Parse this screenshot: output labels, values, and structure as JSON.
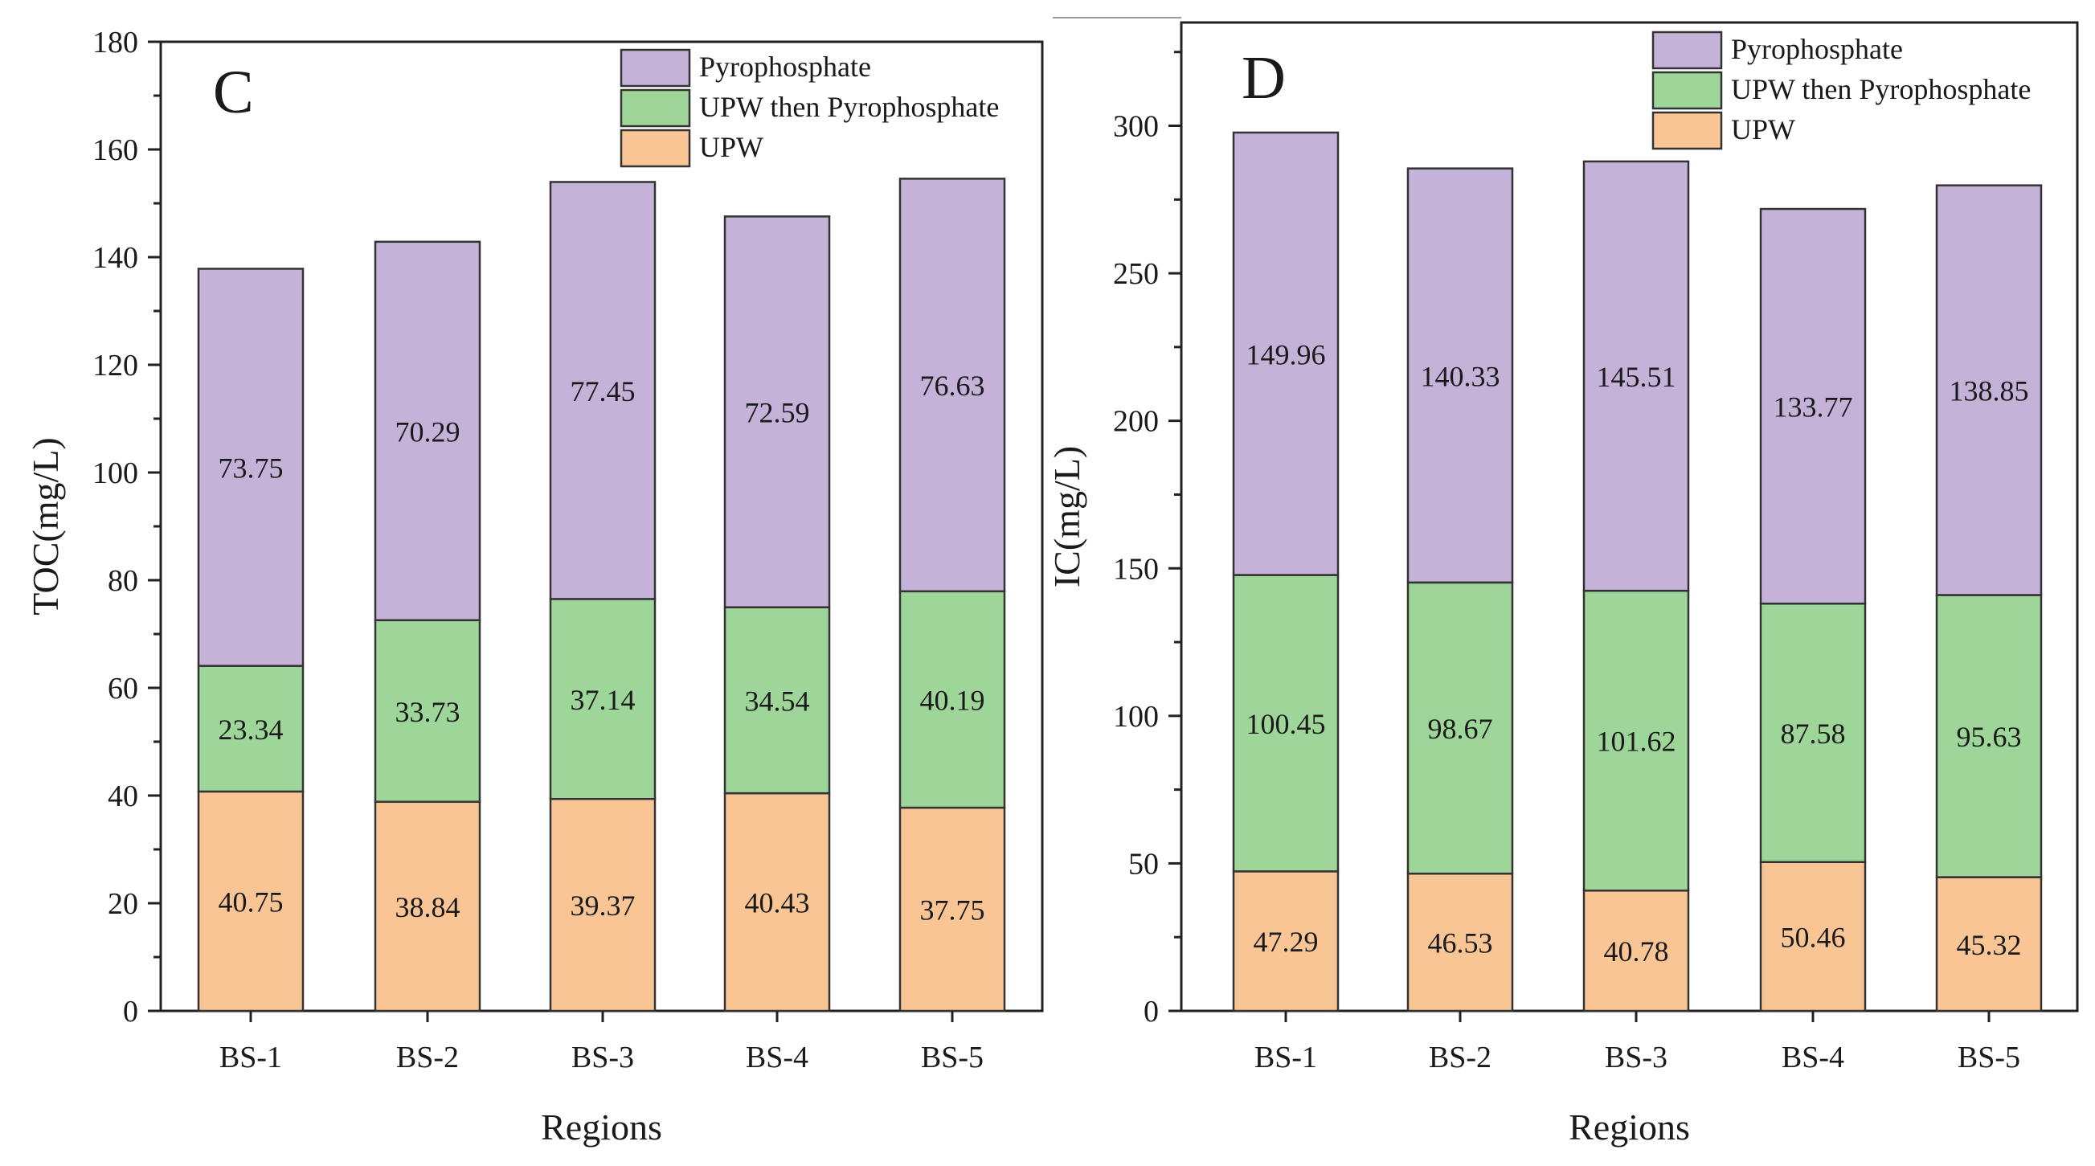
{
  "colors": {
    "upw": "#f9c595",
    "upw_then_pyro": "#9ed69a",
    "pyro": "#c4b2d9"
  },
  "chart_data": [
    {
      "type": "bar",
      "stacked": true,
      "panel_label": "C",
      "categories": [
        "BS-1",
        "BS-2",
        "BS-3",
        "BS-4",
        "BS-5"
      ],
      "series": [
        {
          "name": "UPW",
          "values": [
            40.75,
            38.84,
            39.37,
            40.43,
            37.75
          ],
          "labels": [
            "40.75",
            "38.84",
            "39.37",
            "40.43",
            "37.75"
          ]
        },
        {
          "name": "UPW then Pyrophosphate",
          "values": [
            23.34,
            33.73,
            37.14,
            34.54,
            40.19
          ],
          "labels": [
            "23.34",
            "33.73",
            "37.14",
            "34.54",
            "40.19"
          ]
        },
        {
          "name": "Pyrophosphate",
          "values": [
            73.75,
            70.29,
            77.45,
            72.59,
            76.63
          ],
          "labels": [
            "73.75",
            "70.29",
            "77.45",
            "72.59",
            "76.63"
          ]
        }
      ],
      "legend_order": [
        "Pyrophosphate",
        "UPW then Pyrophosphate",
        "UPW"
      ],
      "legend_position": "top-right",
      "xlabel": "Regions",
      "ylabel": "TOC(mg/L)",
      "ylim": [
        0,
        180
      ],
      "yticks": [
        0,
        20,
        40,
        60,
        80,
        100,
        120,
        140,
        160,
        180
      ],
      "yticklabels": [
        "0",
        "20",
        "40",
        "60",
        "80",
        "100",
        "120",
        "140",
        "160",
        "180"
      ],
      "minor_ticks": true,
      "grid": false
    },
    {
      "type": "bar",
      "stacked": true,
      "panel_label": "D",
      "categories": [
        "BS-1",
        "BS-2",
        "BS-3",
        "BS-4",
        "BS-5"
      ],
      "series": [
        {
          "name": "UPW",
          "values": [
            47.29,
            46.53,
            40.78,
            50.46,
            45.32
          ],
          "labels": [
            "47.29",
            "46.53",
            "40.78",
            "50.46",
            "45.32"
          ]
        },
        {
          "name": "UPW then Pyrophosphate",
          "values": [
            100.45,
            98.67,
            101.62,
            87.58,
            95.63
          ],
          "labels": [
            "100.45",
            "98.67",
            "101.62",
            "87.58",
            "95.63"
          ]
        },
        {
          "name": "Pyrophosphate",
          "values": [
            149.96,
            140.33,
            145.51,
            133.77,
            138.85
          ],
          "labels": [
            "149.96",
            "140.33",
            "145.51",
            "133.77",
            "138.85"
          ]
        }
      ],
      "legend_order": [
        "Pyrophosphate",
        "UPW then Pyrophosphate",
        "UPW"
      ],
      "legend_position": "top-right",
      "xlabel": "Regions",
      "ylabel": "IC(mg/L)",
      "ylim": [
        0,
        335
      ],
      "yticks": [
        0,
        50,
        100,
        150,
        200,
        250,
        300
      ],
      "yticklabels": [
        "0",
        "50",
        "100",
        "150",
        "200",
        "250",
        "300"
      ],
      "minor_ticks": true,
      "grid": false
    }
  ]
}
